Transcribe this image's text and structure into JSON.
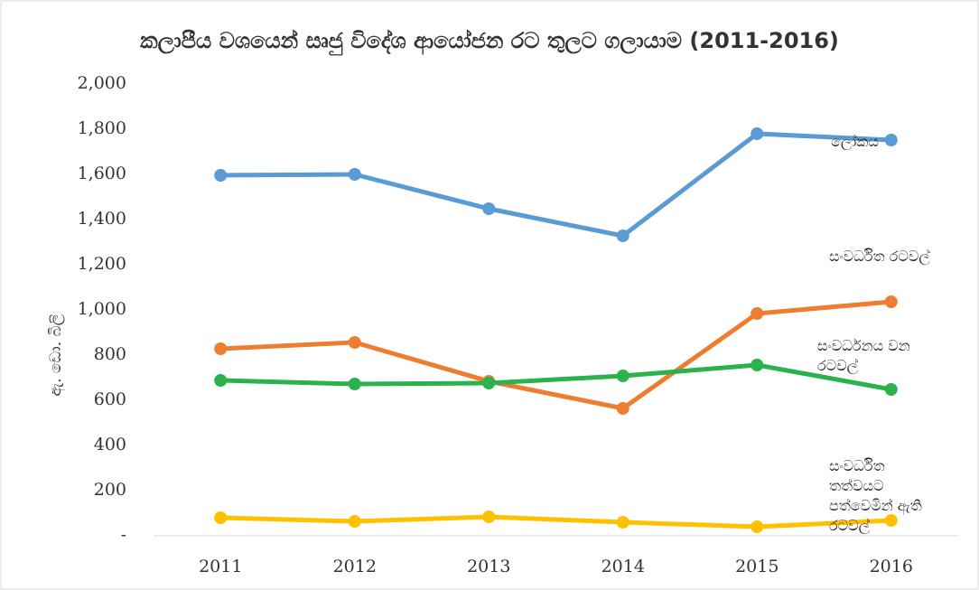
{
  "chart_data": {
    "type": "line",
    "title": "කලාපීය වශයෙන් සෘජු විදේශ ආයෝජන රට තුලට ගලායාම (2011-2016)",
    "y_label": "ඇ. ඩො. බිලි",
    "categories": [
      "2011",
      "2012",
      "2013",
      "2014",
      "2015",
      "2016"
    ],
    "series": [
      {
        "name": "ලෝකය",
        "color": "#5b9bd5",
        "values": [
          1596,
          1600,
          1448,
          1328,
          1780,
          1752
        ]
      },
      {
        "name": "සංවර්ධිත රටවල්",
        "color": "#ed7d31",
        "values": [
          828,
          856,
          684,
          564,
          984,
          1036
        ]
      },
      {
        "name": "සංවර්ධනය වන රටවල්",
        "color": "#2bb24c",
        "values": [
          688,
          672,
          676,
          708,
          756,
          648
        ]
      },
      {
        "name": "සංවර්ධිත තත්වයට පත්වෙමින් ඇති රටවල්",
        "color": "#ffc000",
        "values": [
          80,
          64,
          84,
          60,
          40,
          68
        ]
      }
    ],
    "ylim": [
      0,
      2000
    ],
    "yticks": [
      {
        "value": 0,
        "label": "-"
      },
      200,
      400,
      600,
      800,
      {
        "value": 1000,
        "label": "1,000"
      },
      {
        "value": 1200,
        "label": "1,200"
      },
      {
        "value": 1400,
        "label": "1,400"
      },
      {
        "value": 1600,
        "label": "1,600"
      },
      {
        "value": 1800,
        "label": "1,800"
      },
      {
        "value": 2000,
        "label": "2,000"
      }
    ],
    "grid": false
  }
}
